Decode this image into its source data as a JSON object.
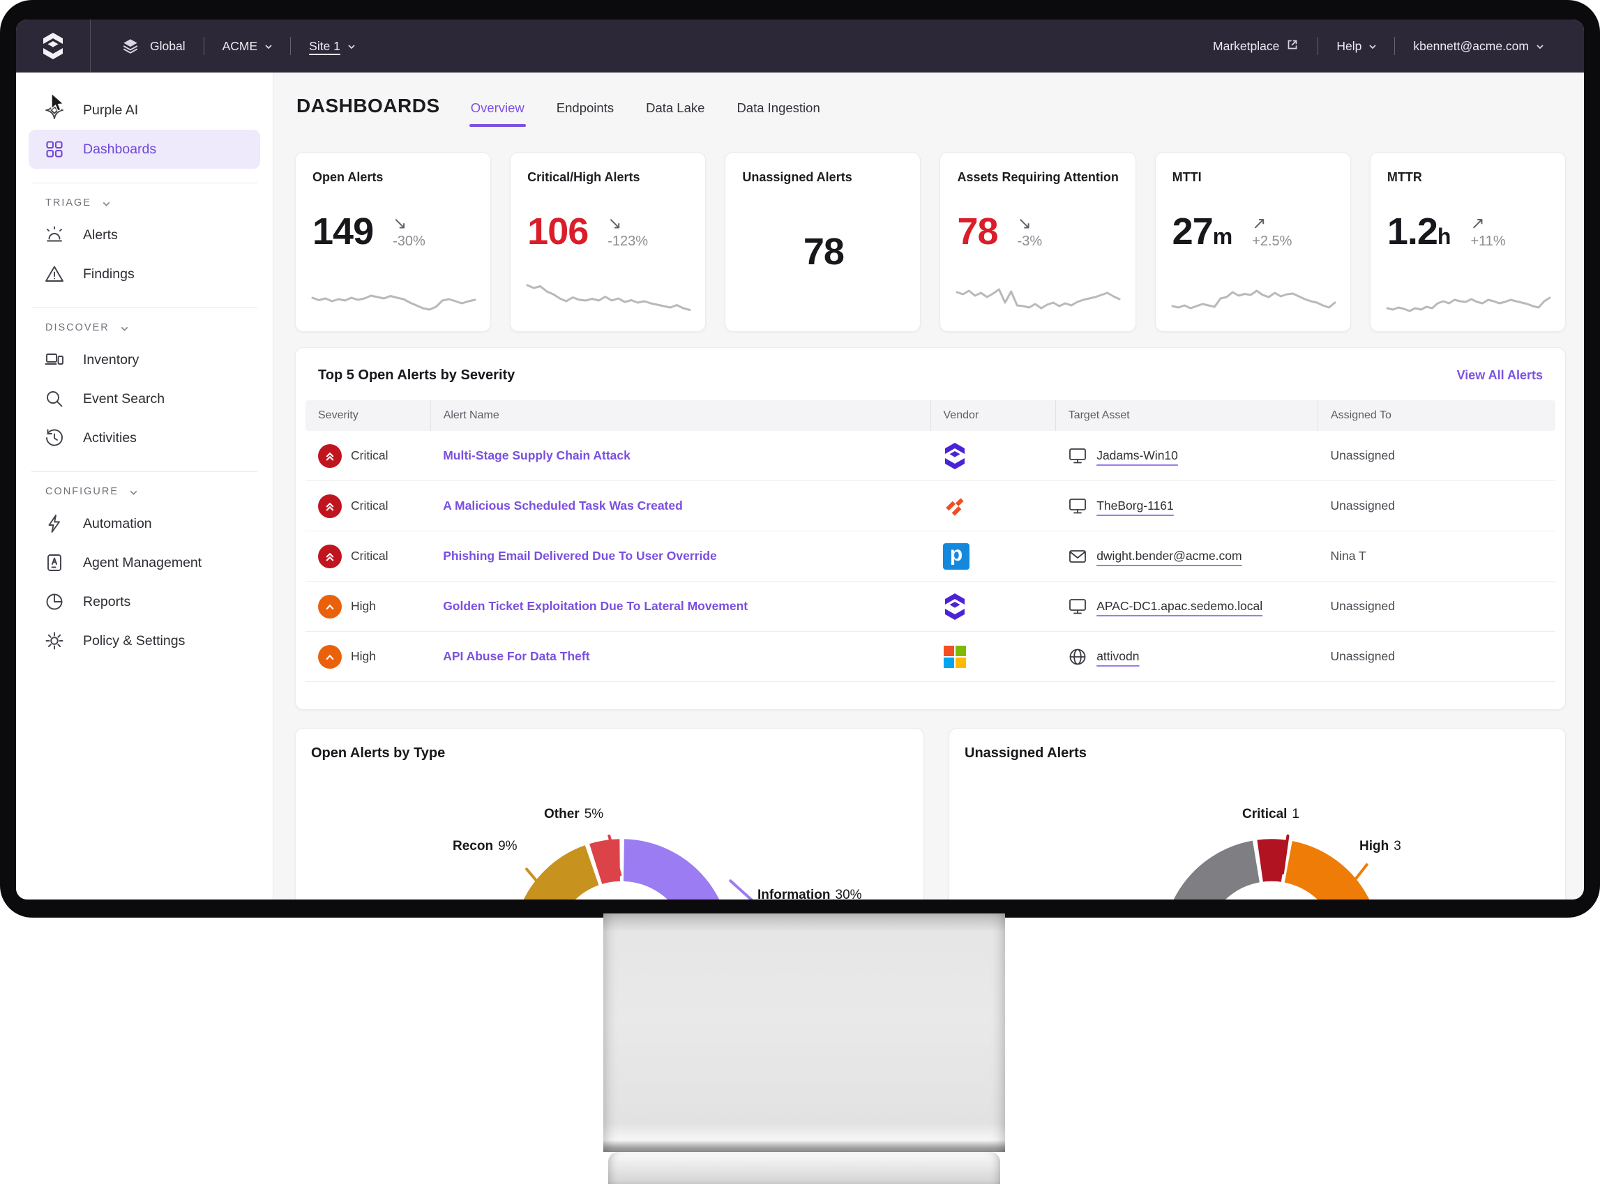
{
  "topnav": {
    "global_label": "Global",
    "org_label": "ACME",
    "site_label": "Site 1",
    "marketplace_label": "Marketplace",
    "help_label": "Help",
    "user_email": "kbennett@acme.com"
  },
  "sidebar": {
    "primary": [
      {
        "label": "Purple AI",
        "icon": "purple-ai-icon"
      },
      {
        "label": "Dashboards",
        "icon": "dashboards-icon",
        "active": true
      }
    ],
    "sections": [
      {
        "label": "TRIAGE",
        "items": [
          {
            "label": "Alerts",
            "icon": "alerts-icon"
          },
          {
            "label": "Findings",
            "icon": "findings-icon"
          }
        ]
      },
      {
        "label": "DISCOVER",
        "items": [
          {
            "label": "Inventory",
            "icon": "inventory-icon"
          },
          {
            "label": "Event Search",
            "icon": "search-icon"
          },
          {
            "label": "Activities",
            "icon": "history-icon"
          }
        ]
      },
      {
        "label": "CONFIGURE",
        "items": [
          {
            "label": "Automation",
            "icon": "lightning-icon"
          },
          {
            "label": "Agent Management",
            "icon": "agent-icon"
          },
          {
            "label": "Reports",
            "icon": "pie-icon"
          },
          {
            "label": "Policy & Settings",
            "icon": "gear-icon"
          }
        ]
      }
    ]
  },
  "page": {
    "title": "DASHBOARDS",
    "tabs": [
      {
        "label": "Overview",
        "active": true
      },
      {
        "label": "Endpoints"
      },
      {
        "label": "Data Lake"
      },
      {
        "label": "Data Ingestion"
      }
    ]
  },
  "kpis": [
    {
      "title": "Open Alerts",
      "value": "149",
      "unit": "",
      "arrow": "↘",
      "trend": "-30%",
      "spark": [
        52,
        45,
        50,
        42,
        48,
        44,
        52,
        46,
        50,
        58,
        54,
        50,
        57,
        52,
        48,
        38,
        30,
        22,
        18,
        26,
        44,
        48,
        42,
        36,
        42,
        46
      ]
    },
    {
      "title": "Critical/High Alerts",
      "value": "106",
      "unit": "",
      "arrow": "↘",
      "trend": "-123%",
      "value_color": "red",
      "spark": [
        88,
        80,
        85,
        70,
        62,
        50,
        42,
        53,
        46,
        44,
        49,
        44,
        55,
        44,
        50,
        40,
        45,
        38,
        42,
        36,
        32,
        28,
        24,
        31,
        22,
        17
      ]
    },
    {
      "title": "Unassigned Alerts",
      "value": "78",
      "unit": "",
      "arrow": "",
      "trend": "",
      "spark": null
    },
    {
      "title": "Assets Requiring Attention",
      "value": "78",
      "unit": "",
      "arrow": "↘",
      "trend": "-3%",
      "value_color": "red",
      "spark": [
        68,
        62,
        72,
        58,
        66,
        54,
        64,
        76,
        38,
        70,
        30,
        28,
        24,
        34,
        22,
        32,
        38,
        28,
        36,
        30,
        40,
        46,
        50,
        54,
        60,
        66,
        56,
        48
      ]
    },
    {
      "title": "MTTI",
      "value": "27",
      "unit": "m",
      "arrow": "↗",
      "trend": "+2.5%",
      "spark": [
        28,
        24,
        30,
        22,
        28,
        34,
        30,
        26,
        50,
        54,
        68,
        58,
        63,
        60,
        72,
        60,
        54,
        66,
        56,
        62,
        64,
        56,
        48,
        42,
        38,
        30,
        24,
        38
      ]
    },
    {
      "title": "MTTR",
      "value": "1.2",
      "unit": "h",
      "arrow": "↗",
      "trend": "+11%",
      "spark": [
        22,
        18,
        24,
        20,
        14,
        22,
        18,
        26,
        22,
        36,
        42,
        36,
        46,
        42,
        40,
        48,
        40,
        36,
        46,
        42,
        36,
        40,
        46,
        42,
        38,
        34,
        28,
        24,
        42,
        52
      ]
    }
  ],
  "alerts_table": {
    "title": "Top 5 Open Alerts by Severity",
    "view_all_label": "View All Alerts",
    "columns": [
      "Severity",
      "Alert Name",
      "Vendor",
      "Target Asset",
      "Assigned To"
    ],
    "rows": [
      {
        "severity": "Critical",
        "name": "Multi-Stage Supply Chain Attack",
        "vendor": "SentinelOne",
        "asset": "Jadams-Win10",
        "asset_icon": "monitor-icon",
        "assigned": "Unassigned"
      },
      {
        "severity": "Critical",
        "name": "A Malicious Scheduled Task Was Created",
        "vendor": "Palo Alto Networks",
        "asset": "TheBorg-1161",
        "asset_icon": "monitor-icon",
        "assigned": "Unassigned"
      },
      {
        "severity": "Critical",
        "name": "Phishing Email Delivered Due To User Override",
        "vendor": "Proofpoint",
        "asset": "dwight.bender@acme.com",
        "asset_icon": "envelope-icon",
        "assigned": "Nina T"
      },
      {
        "severity": "High",
        "name": "Golden Ticket Exploitation Due To Lateral Movement",
        "vendor": "SentinelOne",
        "asset": "APAC-DC1.apac.sedemo.local",
        "asset_icon": "monitor-icon",
        "assigned": "Unassigned"
      },
      {
        "severity": "High",
        "name": "API Abuse For Data Theft",
        "vendor": "Microsoft",
        "asset": "attivodn",
        "asset_icon": "globe-icon",
        "assigned": "Unassigned"
      }
    ],
    "vendor_glyphs": {
      "proofpoint": "p"
    }
  },
  "chart_data": [
    {
      "type": "pie",
      "title": "Open Alerts by Type",
      "legend": "none",
      "note": "donut partially visible, bottom cut off by screen edge; labels use leader lines",
      "slices": [
        {
          "label": "Recon",
          "value": 9,
          "value_label": "9%",
          "color": "#c8921f",
          "start_deg": -70,
          "end_deg": -19
        },
        {
          "label": "Other",
          "value": 5,
          "value_label": "5%",
          "color": "#dc4348",
          "start_deg": -17.5,
          "end_deg": -0.5
        },
        {
          "label": "Information",
          "value": 30,
          "value_label": "30%",
          "color": "#9b7cf2",
          "start_deg": 1,
          "end_deg": 110
        }
      ]
    },
    {
      "type": "pie",
      "title": "Unassigned Alerts",
      "legend": "none",
      "note": "donut partially visible, bottom cut off by screen edge; gray slice unlabeled",
      "slices": [
        {
          "label": "",
          "value": null,
          "value_label": "",
          "color": "#7e7e83",
          "start_deg": -110,
          "end_deg": -9.5
        },
        {
          "label": "Critical",
          "value": 1,
          "value_label": "1",
          "color": "#b11321",
          "start_deg": -8,
          "end_deg": 9
        },
        {
          "label": "High",
          "value": 3,
          "value_label": "3",
          "color": "#ef7c07",
          "start_deg": 10.5,
          "end_deg": 110
        }
      ]
    }
  ],
  "colors": {
    "accent_purple": "#7b52e0",
    "critical_red": "#c0141f",
    "high_orange": "#ea610c",
    "value_red": "#d91e2a",
    "nav_bg": "#2d2838"
  }
}
